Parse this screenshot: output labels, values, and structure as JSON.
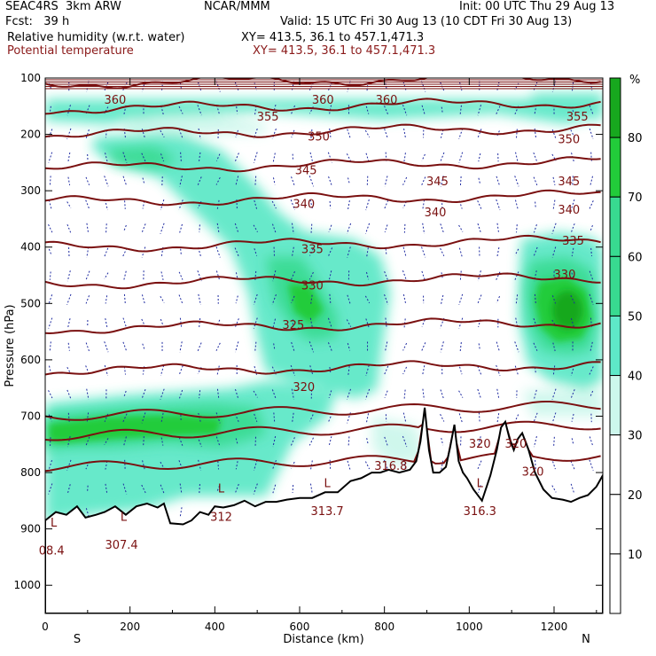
{
  "header": {
    "model": "SEAC4RS  3km ARW",
    "org": "NCAR/MMM",
    "init": "Init: 00 UTC Thu 29 Aug 13",
    "fcst": "Fcst:   39 h",
    "valid": "Valid: 15 UTC Fri 30 Aug 13 (10 CDT Fri 30 Aug 13)",
    "field1": "Relative humidity (w.r.t. water)",
    "field1_xy": "XY= 413.5, 36.1 to 457.1,471.3",
    "field2": "Potential temperature",
    "field2_xy": "XY= 413.5, 36.1 to 457.1,471.3"
  },
  "colors": {
    "terrain": "#000000",
    "theta": "#7a1010",
    "wind": "#1e2aa0",
    "rh_fill": [
      "#ffffff",
      "#ffffff",
      "#ffffff",
      "#cdf7ec",
      "#5ee8c8",
      "#38da90",
      "#22cc3a",
      "#17a81e"
    ]
  },
  "chart_data": {
    "type": "heatmap",
    "xlabel": "Distance (km)",
    "ylabel": "Pressure (hPa)",
    "xlim": [
      0,
      1315
    ],
    "ylim": [
      1050,
      100
    ],
    "x_ticks": [
      "0",
      "200",
      "400",
      "600",
      "800",
      "1000",
      "1200"
    ],
    "y_ticks": [
      "100",
      "200",
      "300",
      "400",
      "500",
      "600",
      "700",
      "800",
      "900",
      "1000"
    ],
    "x_end_labels": {
      "left": "S",
      "right": "N"
    },
    "colorbar": {
      "unit": "%",
      "levels": [
        "10",
        "20",
        "30",
        "40",
        "50",
        "60",
        "70",
        "80"
      ]
    },
    "theta_contours": [
      {
        "theta": 360,
        "p": 110
      },
      {
        "theta": 355,
        "p": 155
      },
      {
        "theta": 350,
        "p": 200
      },
      {
        "theta": 345,
        "p": 260
      },
      {
        "theta": 340,
        "p": 320
      },
      {
        "theta": 335,
        "p": 400
      },
      {
        "theta": 330,
        "p": 465
      },
      {
        "theta": 325,
        "p": 545
      },
      {
        "theta": 320,
        "p": 620
      }
    ],
    "contour_labels": [
      {
        "text": "360",
        "x": 165,
        "p": 140
      },
      {
        "text": "355",
        "x": 525,
        "p": 170
      },
      {
        "text": "360",
        "x": 655,
        "p": 140
      },
      {
        "text": "360",
        "x": 805,
        "p": 140
      },
      {
        "text": "350",
        "x": 645,
        "p": 205
      },
      {
        "text": "350",
        "x": 1235,
        "p": 210
      },
      {
        "text": "355",
        "x": 1255,
        "p": 170
      },
      {
        "text": "345",
        "x": 615,
        "p": 265
      },
      {
        "text": "345",
        "x": 925,
        "p": 285
      },
      {
        "text": "345",
        "x": 1235,
        "p": 285
      },
      {
        "text": "340",
        "x": 610,
        "p": 325
      },
      {
        "text": "340",
        "x": 920,
        "p": 340
      },
      {
        "text": "340",
        "x": 1235,
        "p": 335
      },
      {
        "text": "335",
        "x": 630,
        "p": 405
      },
      {
        "text": "335",
        "x": 1245,
        "p": 390
      },
      {
        "text": "330",
        "x": 630,
        "p": 470
      },
      {
        "text": "330",
        "x": 1225,
        "p": 450
      },
      {
        "text": "325",
        "x": 585,
        "p": 540
      },
      {
        "text": "320",
        "x": 610,
        "p": 650
      },
      {
        "text": "320",
        "x": 1025,
        "p": 750
      },
      {
        "text": "320",
        "x": 1110,
        "p": 750
      },
      {
        "text": "320",
        "x": 1150,
        "p": 800
      }
    ],
    "minima": [
      {
        "text": "L",
        "x": 20,
        "p": 890,
        "value": "08.4",
        "vx": 15,
        "vp": 940
      },
      {
        "text": "L",
        "x": 185,
        "p": 880,
        "value": "307.4",
        "vx": 180,
        "vp": 930
      },
      {
        "text": "L",
        "x": 415,
        "p": 830,
        "value": "312",
        "vx": 415,
        "vp": 880
      },
      {
        "text": "L",
        "x": 665,
        "p": 820,
        "value": "313.7",
        "vx": 665,
        "vp": 870
      },
      {
        "text": "",
        "x": 0,
        "p": 0,
        "value": "316.8",
        "vx": 815,
        "vp": 790
      },
      {
        "text": "L",
        "x": 1025,
        "p": 820,
        "value": "316.3",
        "vx": 1025,
        "vp": 870
      }
    ],
    "terrain_profile": [
      [
        0,
        885
      ],
      [
        25,
        870
      ],
      [
        50,
        875
      ],
      [
        75,
        860
      ],
      [
        95,
        880
      ],
      [
        120,
        875
      ],
      [
        140,
        870
      ],
      [
        165,
        860
      ],
      [
        190,
        875
      ],
      [
        215,
        860
      ],
      [
        240,
        855
      ],
      [
        265,
        862
      ],
      [
        280,
        855
      ],
      [
        295,
        890
      ],
      [
        325,
        892
      ],
      [
        345,
        885
      ],
      [
        365,
        870
      ],
      [
        385,
        875
      ],
      [
        400,
        860
      ],
      [
        420,
        862
      ],
      [
        445,
        858
      ],
      [
        470,
        850
      ],
      [
        495,
        860
      ],
      [
        520,
        852
      ],
      [
        545,
        852
      ],
      [
        570,
        848
      ],
      [
        600,
        845
      ],
      [
        630,
        845
      ],
      [
        660,
        835
      ],
      [
        690,
        835
      ],
      [
        720,
        815
      ],
      [
        745,
        810
      ],
      [
        770,
        800
      ],
      [
        790,
        800
      ],
      [
        810,
        795
      ],
      [
        835,
        800
      ],
      [
        860,
        795
      ],
      [
        875,
        780
      ],
      [
        885,
        745
      ],
      [
        895,
        685
      ],
      [
        905,
        760
      ],
      [
        915,
        800
      ],
      [
        930,
        800
      ],
      [
        945,
        790
      ],
      [
        955,
        755
      ],
      [
        965,
        715
      ],
      [
        975,
        780
      ],
      [
        985,
        800
      ],
      [
        995,
        810
      ],
      [
        1010,
        830
      ],
      [
        1030,
        850
      ],
      [
        1050,
        805
      ],
      [
        1065,
        760
      ],
      [
        1075,
        720
      ],
      [
        1085,
        710
      ],
      [
        1095,
        740
      ],
      [
        1105,
        760
      ],
      [
        1115,
        740
      ],
      [
        1125,
        730
      ],
      [
        1140,
        760
      ],
      [
        1155,
        800
      ],
      [
        1175,
        830
      ],
      [
        1195,
        845
      ],
      [
        1220,
        848
      ],
      [
        1240,
        852
      ],
      [
        1260,
        845
      ],
      [
        1280,
        840
      ],
      [
        1300,
        825
      ],
      [
        1315,
        805
      ]
    ]
  }
}
